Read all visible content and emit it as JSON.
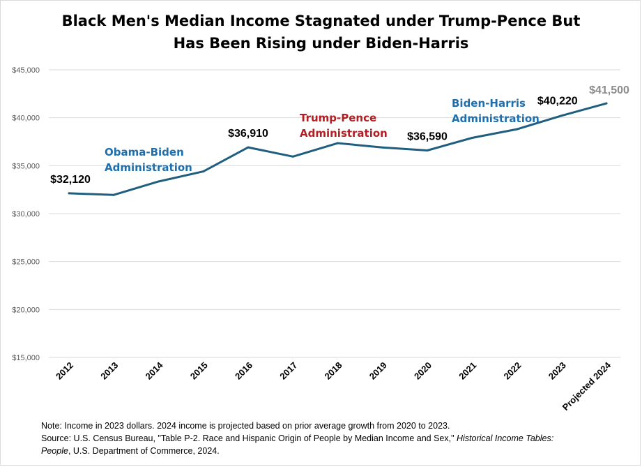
{
  "chart_data": {
    "type": "line",
    "title_line1": "Black Men's Median Income Stagnated under Trump-Pence But",
    "title_line2": "Has Been Rising under Biden-Harris",
    "categories": [
      "2012",
      "2013",
      "2014",
      "2015",
      "2016",
      "2017",
      "2018",
      "2019",
      "2020",
      "2021",
      "2022",
      "2023",
      "Projected 2024"
    ],
    "values": [
      32120,
      31950,
      33350,
      34400,
      36910,
      35950,
      37350,
      36900,
      36590,
      37900,
      38800,
      40220,
      41500
    ],
    "ylim": [
      15000,
      45000
    ],
    "yticks": [
      15000,
      20000,
      25000,
      30000,
      35000,
      40000,
      45000
    ],
    "ytick_labels": [
      "$15,000",
      "$20,000",
      "$25,000",
      "$30,000",
      "$35,000",
      "$40,000",
      "$45,000"
    ],
    "grid": true,
    "line_color": "#1f5e7f",
    "data_labels": [
      {
        "index": 0,
        "text": "$32,120",
        "color": "#000000"
      },
      {
        "index": 4,
        "text": "$36,910",
        "color": "#000000"
      },
      {
        "index": 8,
        "text": "$36,590",
        "color": "#000000"
      },
      {
        "index": 11,
        "text": "$40,220",
        "color": "#000000"
      },
      {
        "index": 12,
        "text": "$41,500",
        "color": "#8c8c8c"
      }
    ],
    "annotations": [
      {
        "line1": "Obama-Biden",
        "line2": "Administration",
        "color": "#1f6fad"
      },
      {
        "line1": "Trump-Pence",
        "line2": "Administration",
        "color": "#b11f24"
      },
      {
        "line1": "Biden-Harris",
        "line2": "Administration",
        "color": "#1f6fad"
      }
    ]
  },
  "note": {
    "line1": "Note: Income in 2023 dollars. 2024 income is projected based on prior average growth from 2020 to 2023.",
    "source_prefix": "Source:  U.S. Census Bureau, \"Table P-2. Race and Hispanic Origin of People by Median Income and Sex,\" ",
    "source_italic_1": "Historical Income Tables:",
    "source_italic_2": "People",
    "source_suffix": ", U.S. Department of Commerce, 2024."
  }
}
